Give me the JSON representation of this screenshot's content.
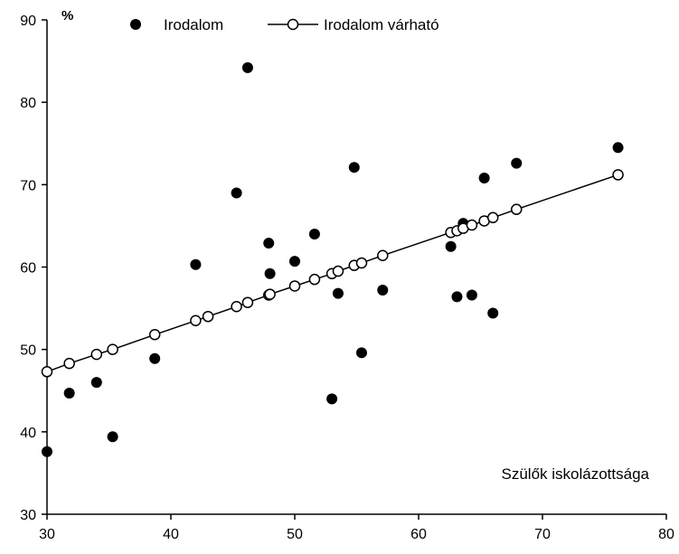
{
  "chart_data": {
    "type": "scatter",
    "xlabel": "Szülők iskolázottsága",
    "ylabel": "%",
    "xlim": [
      30,
      80
    ],
    "ylim": [
      30,
      90
    ],
    "x_ticks": [
      "30",
      "40",
      "50",
      "60",
      "70",
      "80"
    ],
    "y_ticks": [
      "30",
      "40",
      "50",
      "60",
      "70",
      "80",
      "90"
    ],
    "grid": false,
    "legend_position": "top",
    "series": [
      {
        "name": "Irodalom",
        "marker": "filled-circle",
        "line": false,
        "points": [
          {
            "x": 30.0,
            "y": 37.6
          },
          {
            "x": 31.8,
            "y": 44.7
          },
          {
            "x": 34.0,
            "y": 46.0
          },
          {
            "x": 35.3,
            "y": 39.4
          },
          {
            "x": 38.7,
            "y": 48.9
          },
          {
            "x": 42.0,
            "y": 60.3
          },
          {
            "x": 43.0,
            "y": 54.0
          },
          {
            "x": 45.3,
            "y": 69.0
          },
          {
            "x": 46.2,
            "y": 84.2
          },
          {
            "x": 47.9,
            "y": 62.9
          },
          {
            "x": 48.0,
            "y": 59.2
          },
          {
            "x": 50.0,
            "y": 60.7
          },
          {
            "x": 51.6,
            "y": 64.0
          },
          {
            "x": 53.0,
            "y": 44.0
          },
          {
            "x": 53.5,
            "y": 56.8
          },
          {
            "x": 54.8,
            "y": 72.1
          },
          {
            "x": 55.4,
            "y": 49.6
          },
          {
            "x": 57.1,
            "y": 57.2
          },
          {
            "x": 62.6,
            "y": 62.5
          },
          {
            "x": 63.1,
            "y": 56.4
          },
          {
            "x": 63.6,
            "y": 65.3
          },
          {
            "x": 64.3,
            "y": 56.6
          },
          {
            "x": 65.3,
            "y": 70.8
          },
          {
            "x": 66.0,
            "y": 54.4
          },
          {
            "x": 67.9,
            "y": 72.6
          },
          {
            "x": 76.1,
            "y": 74.5
          }
        ]
      },
      {
        "name": "Irodalom várható",
        "marker": "open-circle",
        "line": true,
        "points": [
          {
            "x": 30.0,
            "y": 47.3
          },
          {
            "x": 31.8,
            "y": 48.3
          },
          {
            "x": 34.0,
            "y": 49.4
          },
          {
            "x": 35.3,
            "y": 50.0
          },
          {
            "x": 38.7,
            "y": 51.8
          },
          {
            "x": 42.0,
            "y": 53.5
          },
          {
            "x": 43.0,
            "y": 54.0
          },
          {
            "x": 45.3,
            "y": 55.2
          },
          {
            "x": 46.2,
            "y": 55.7
          },
          {
            "x": 47.9,
            "y": 56.6
          },
          {
            "x": 48.0,
            "y": 56.7
          },
          {
            "x": 50.0,
            "y": 57.7
          },
          {
            "x": 51.6,
            "y": 58.5
          },
          {
            "x": 53.0,
            "y": 59.2
          },
          {
            "x": 53.5,
            "y": 59.5
          },
          {
            "x": 54.8,
            "y": 60.2
          },
          {
            "x": 55.4,
            "y": 60.5
          },
          {
            "x": 57.1,
            "y": 61.4
          },
          {
            "x": 62.6,
            "y": 64.2
          },
          {
            "x": 63.1,
            "y": 64.4
          },
          {
            "x": 63.6,
            "y": 64.7
          },
          {
            "x": 64.3,
            "y": 65.1
          },
          {
            "x": 65.3,
            "y": 65.6
          },
          {
            "x": 66.0,
            "y": 66.0
          },
          {
            "x": 67.9,
            "y": 67.0
          },
          {
            "x": 76.1,
            "y": 71.2
          }
        ]
      }
    ]
  }
}
